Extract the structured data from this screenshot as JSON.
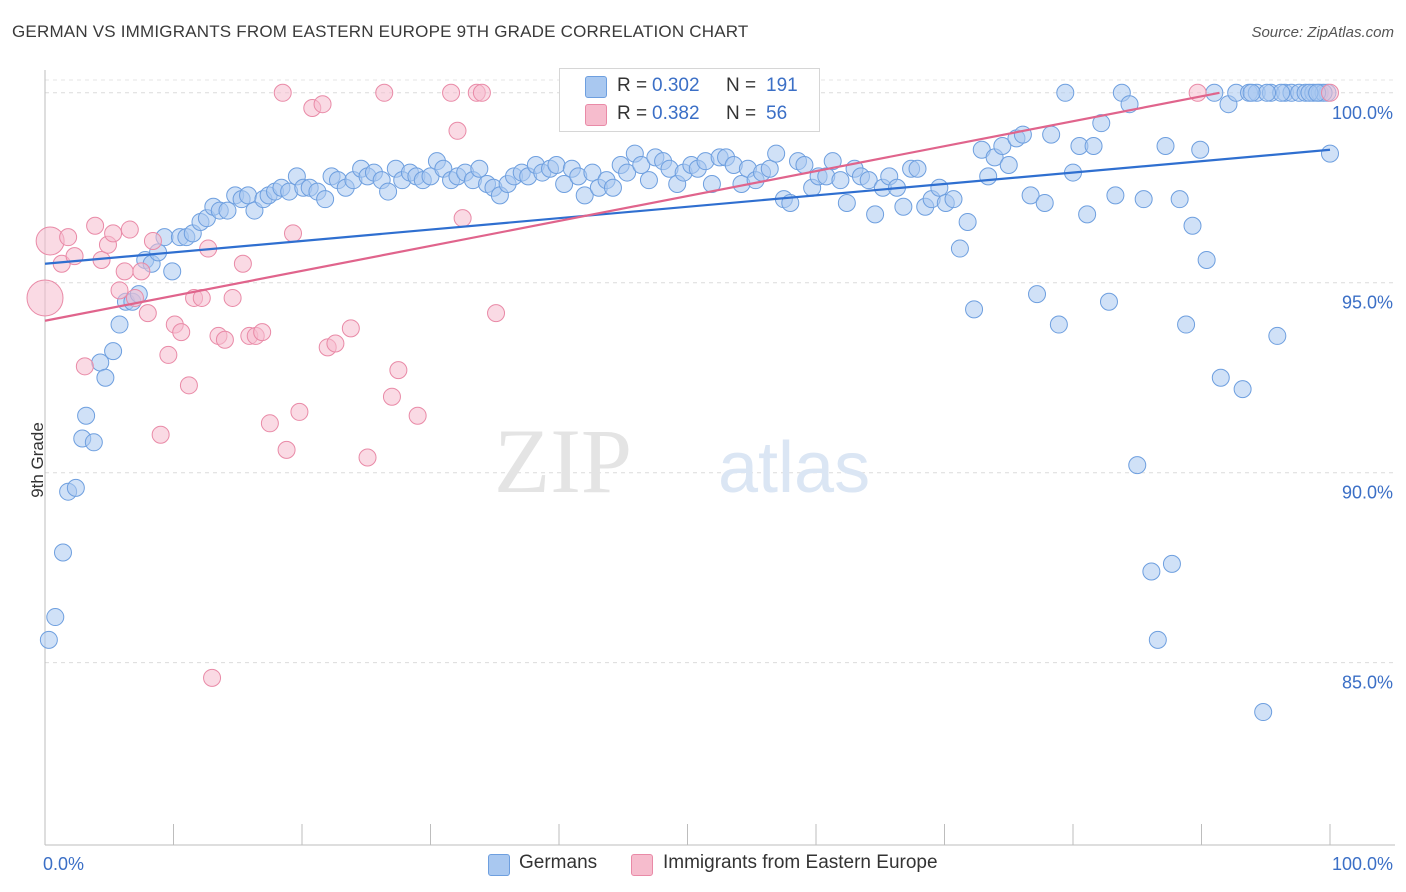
{
  "title": "GERMAN VS IMMIGRANTS FROM EASTERN EUROPE 9TH GRADE CORRELATION CHART",
  "source": "Source: ZipAtlas.com",
  "watermark": {
    "zip": "ZIP",
    "atlas": "atlas"
  },
  "legend": {
    "r_label": "R =",
    "n_label": "N =",
    "series": [
      {
        "r": "0.302",
        "n": "191"
      },
      {
        "r": "0.382",
        "n": "56"
      }
    ]
  },
  "bottom_legend": [
    "Germans",
    "Immigrants from Eastern Europe"
  ],
  "colors": {
    "blue_fill": "#a9c8f0",
    "blue_stroke": "#6e9fdf",
    "blue_line": "#2f6fd0",
    "pink_fill": "#f6bccd",
    "pink_stroke": "#e98aa7",
    "pink_line": "#e0648c",
    "value_text": "#3b6fc6",
    "grid": "#dcdcdc"
  },
  "chart_data": {
    "type": "scatter",
    "ylabel": "9th Grade",
    "xlim": [
      0,
      100
    ],
    "ylim": [
      80.2,
      100.6
    ],
    "x_tick_labels": [
      "0.0%",
      "100.0%"
    ],
    "y_ticks": [
      100,
      95,
      90,
      85
    ],
    "y_tick_labels": [
      "100.0%",
      "95.0%",
      "90.0%",
      "85.0%"
    ],
    "grid": true,
    "series": [
      {
        "name": "Germans",
        "color": "#6e9fdf",
        "trend": {
          "x": [
            0,
            100
          ],
          "y": [
            95.5,
            98.5
          ]
        },
        "points": [
          [
            0.3,
            85.6
          ],
          [
            0.8,
            86.2
          ],
          [
            1.4,
            87.9
          ],
          [
            1.8,
            89.5
          ],
          [
            2.4,
            89.6
          ],
          [
            2.9,
            90.9
          ],
          [
            3.2,
            91.5
          ],
          [
            3.8,
            90.8
          ],
          [
            4.3,
            92.9
          ],
          [
            4.7,
            92.5
          ],
          [
            5.3,
            93.2
          ],
          [
            5.8,
            93.9
          ],
          [
            6.3,
            94.5
          ],
          [
            6.8,
            94.5
          ],
          [
            7.3,
            94.7
          ],
          [
            7.8,
            95.6
          ],
          [
            8.3,
            95.5
          ],
          [
            8.8,
            95.8
          ],
          [
            9.3,
            96.2
          ],
          [
            9.9,
            95.3
          ],
          [
            10.5,
            96.2
          ],
          [
            11.0,
            96.2
          ],
          [
            11.5,
            96.3
          ],
          [
            12.1,
            96.6
          ],
          [
            12.6,
            96.7
          ],
          [
            13.1,
            97.0
          ],
          [
            13.6,
            96.9
          ],
          [
            14.2,
            96.9
          ],
          [
            14.8,
            97.3
          ],
          [
            15.3,
            97.2
          ],
          [
            15.8,
            97.3
          ],
          [
            16.3,
            96.9
          ],
          [
            17.0,
            97.2
          ],
          [
            17.4,
            97.3
          ],
          [
            17.9,
            97.4
          ],
          [
            18.4,
            97.5
          ],
          [
            19.0,
            97.4
          ],
          [
            19.6,
            97.8
          ],
          [
            20.1,
            97.5
          ],
          [
            20.6,
            97.5
          ],
          [
            21.2,
            97.4
          ],
          [
            21.8,
            97.2
          ],
          [
            22.3,
            97.8
          ],
          [
            22.8,
            97.7
          ],
          [
            23.4,
            97.5
          ],
          [
            24.0,
            97.7
          ],
          [
            24.6,
            98.0
          ],
          [
            25.1,
            97.8
          ],
          [
            25.6,
            97.9
          ],
          [
            26.2,
            97.7
          ],
          [
            26.7,
            97.4
          ],
          [
            27.3,
            98.0
          ],
          [
            27.8,
            97.7
          ],
          [
            28.4,
            97.9
          ],
          [
            28.9,
            97.8
          ],
          [
            29.4,
            97.7
          ],
          [
            30.0,
            97.8
          ],
          [
            30.5,
            98.2
          ],
          [
            31.0,
            98.0
          ],
          [
            31.6,
            97.7
          ],
          [
            32.1,
            97.8
          ],
          [
            32.7,
            97.9
          ],
          [
            33.3,
            97.7
          ],
          [
            33.8,
            98.0
          ],
          [
            34.4,
            97.6
          ],
          [
            34.9,
            97.5
          ],
          [
            35.4,
            97.3
          ],
          [
            36.0,
            97.6
          ],
          [
            36.5,
            97.8
          ],
          [
            37.1,
            97.9
          ],
          [
            37.6,
            97.8
          ],
          [
            38.2,
            98.1
          ],
          [
            38.7,
            97.9
          ],
          [
            39.3,
            98.0
          ],
          [
            39.8,
            98.1
          ],
          [
            40.4,
            97.6
          ],
          [
            41.0,
            98.0
          ],
          [
            41.5,
            97.8
          ],
          [
            42.0,
            97.3
          ],
          [
            42.6,
            97.9
          ],
          [
            43.1,
            97.5
          ],
          [
            43.7,
            97.7
          ],
          [
            44.2,
            97.5
          ],
          [
            44.8,
            98.1
          ],
          [
            45.3,
            97.9
          ],
          [
            45.9,
            98.4
          ],
          [
            46.4,
            98.1
          ],
          [
            47.0,
            97.7
          ],
          [
            47.5,
            98.3
          ],
          [
            48.1,
            98.2
          ],
          [
            48.6,
            98.0
          ],
          [
            49.2,
            97.6
          ],
          [
            49.7,
            97.9
          ],
          [
            50.3,
            98.1
          ],
          [
            50.8,
            98.0
          ],
          [
            51.4,
            98.2
          ],
          [
            51.9,
            97.6
          ],
          [
            52.5,
            98.3
          ],
          [
            53.0,
            98.3
          ],
          [
            53.6,
            98.1
          ],
          [
            54.2,
            97.6
          ],
          [
            54.7,
            98.0
          ],
          [
            55.3,
            97.7
          ],
          [
            55.8,
            97.9
          ],
          [
            56.4,
            98.0
          ],
          [
            56.9,
            98.4
          ],
          [
            57.5,
            97.2
          ],
          [
            58.0,
            97.1
          ],
          [
            58.6,
            98.2
          ],
          [
            59.1,
            98.1
          ],
          [
            59.7,
            97.5
          ],
          [
            60.2,
            97.8
          ],
          [
            60.8,
            97.8
          ],
          [
            61.3,
            98.2
          ],
          [
            61.9,
            97.7
          ],
          [
            62.4,
            97.1
          ],
          [
            63.0,
            98.0
          ],
          [
            63.5,
            97.8
          ],
          [
            64.1,
            97.7
          ],
          [
            64.6,
            96.8
          ],
          [
            65.2,
            97.5
          ],
          [
            65.7,
            97.8
          ],
          [
            66.3,
            97.5
          ],
          [
            66.8,
            97.0
          ],
          [
            67.4,
            98.0
          ],
          [
            67.9,
            98.0
          ],
          [
            68.5,
            97.0
          ],
          [
            69.0,
            97.2
          ],
          [
            69.6,
            97.5
          ],
          [
            70.1,
            97.1
          ],
          [
            70.7,
            97.2
          ],
          [
            71.2,
            95.9
          ],
          [
            71.8,
            96.6
          ],
          [
            72.3,
            94.3
          ],
          [
            72.9,
            98.5
          ],
          [
            73.4,
            97.8
          ],
          [
            73.9,
            98.3
          ],
          [
            74.5,
            98.6
          ],
          [
            75.0,
            98.1
          ],
          [
            75.6,
            98.8
          ],
          [
            76.1,
            98.9
          ],
          [
            76.7,
            97.3
          ],
          [
            77.2,
            94.7
          ],
          [
            77.8,
            97.1
          ],
          [
            78.3,
            98.9
          ],
          [
            78.9,
            93.9
          ],
          [
            79.4,
            100.0
          ],
          [
            80.0,
            97.9
          ],
          [
            80.5,
            98.6
          ],
          [
            81.1,
            96.8
          ],
          [
            81.6,
            98.6
          ],
          [
            82.2,
            99.2
          ],
          [
            82.8,
            94.5
          ],
          [
            83.3,
            97.3
          ],
          [
            83.8,
            100.0
          ],
          [
            84.4,
            99.7
          ],
          [
            85.0,
            90.2
          ],
          [
            85.5,
            97.2
          ],
          [
            86.1,
            87.4
          ],
          [
            86.6,
            85.6
          ],
          [
            87.2,
            98.6
          ],
          [
            87.7,
            87.6
          ],
          [
            88.3,
            97.2
          ],
          [
            88.8,
            93.9
          ],
          [
            89.3,
            96.5
          ],
          [
            89.9,
            98.5
          ],
          [
            90.4,
            95.6
          ],
          [
            91.0,
            100.0
          ],
          [
            91.5,
            92.5
          ],
          [
            92.1,
            99.7
          ],
          [
            92.7,
            100.0
          ],
          [
            93.2,
            92.2
          ],
          [
            93.7,
            100.0
          ],
          [
            94.3,
            100.0
          ],
          [
            94.8,
            83.7
          ],
          [
            95.4,
            100.0
          ],
          [
            95.9,
            93.6
          ],
          [
            96.5,
            100.0
          ],
          [
            97.0,
            100.0
          ],
          [
            97.6,
            100.0
          ],
          [
            98.1,
            100.0
          ],
          [
            98.7,
            100.0
          ],
          [
            99.2,
            100.0
          ],
          [
            99.8,
            100.0
          ],
          [
            100.0,
            98.4
          ],
          [
            99.5,
            100.0
          ],
          [
            98.4,
            100.0
          ],
          [
            96.2,
            100.0
          ],
          [
            95.1,
            100.0
          ],
          [
            93.9,
            100.0
          ],
          [
            99.0,
            100.0
          ]
        ]
      },
      {
        "name": "Immigrants from Eastern Europe",
        "color": "#e98aa7",
        "trend": {
          "x": [
            0,
            91.4
          ],
          "y": [
            94.0,
            100.0
          ]
        },
        "points": [
          [
            0.0,
            94.6
          ],
          [
            0.4,
            96.1
          ],
          [
            1.3,
            95.5
          ],
          [
            1.8,
            96.2
          ],
          [
            2.3,
            95.7
          ],
          [
            3.1,
            92.8
          ],
          [
            3.9,
            96.5
          ],
          [
            4.4,
            95.6
          ],
          [
            4.9,
            96.0
          ],
          [
            5.3,
            96.3
          ],
          [
            5.8,
            94.8
          ],
          [
            6.2,
            95.3
          ],
          [
            6.6,
            96.4
          ],
          [
            7.0,
            94.6
          ],
          [
            7.5,
            95.3
          ],
          [
            8.0,
            94.2
          ],
          [
            8.4,
            96.1
          ],
          [
            9.0,
            91.0
          ],
          [
            9.6,
            93.1
          ],
          [
            10.1,
            93.9
          ],
          [
            10.6,
            93.7
          ],
          [
            11.2,
            92.3
          ],
          [
            11.6,
            94.6
          ],
          [
            12.2,
            94.6
          ],
          [
            12.7,
            95.9
          ],
          [
            13.0,
            84.6
          ],
          [
            13.5,
            93.6
          ],
          [
            14.0,
            93.5
          ],
          [
            14.6,
            94.6
          ],
          [
            15.4,
            95.5
          ],
          [
            15.9,
            93.6
          ],
          [
            16.4,
            93.6
          ],
          [
            16.9,
            93.7
          ],
          [
            17.5,
            91.3
          ],
          [
            18.5,
            100.0
          ],
          [
            18.8,
            90.6
          ],
          [
            19.3,
            96.3
          ],
          [
            19.8,
            91.6
          ],
          [
            20.8,
            99.6
          ],
          [
            21.6,
            99.7
          ],
          [
            22.0,
            93.3
          ],
          [
            22.6,
            93.4
          ],
          [
            23.8,
            93.8
          ],
          [
            25.1,
            90.4
          ],
          [
            26.4,
            100.0
          ],
          [
            27.0,
            92.0
          ],
          [
            27.5,
            92.7
          ],
          [
            29.0,
            91.5
          ],
          [
            31.6,
            100.0
          ],
          [
            32.1,
            99.0
          ],
          [
            32.5,
            96.7
          ],
          [
            33.6,
            100.0
          ],
          [
            34.0,
            100.0
          ],
          [
            35.1,
            94.2
          ],
          [
            89.7,
            100.0
          ],
          [
            100.0,
            100.0
          ]
        ]
      }
    ]
  }
}
